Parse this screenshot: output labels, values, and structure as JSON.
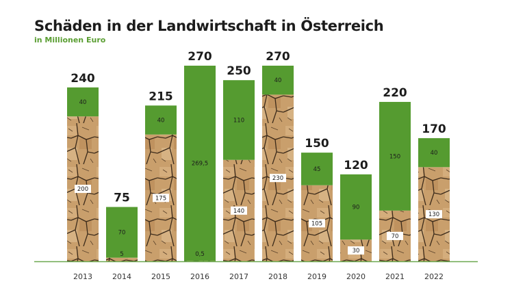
{
  "chart_data": {
    "type": "bar",
    "stacked": true,
    "title": "Schäden in der Landwirtschaft in Österreich",
    "subtitle": "in Millionen Euro",
    "categories": [
      "2013",
      "2014",
      "2015",
      "2016",
      "2017",
      "2018",
      "2019",
      "2020",
      "2021",
      "2022"
    ],
    "series": [
      {
        "values": [
          200,
          5,
          175,
          0.5,
          140,
          230,
          105,
          30,
          70,
          130
        ],
        "labels": [
          "200",
          "5",
          "175",
          "0,5",
          "140",
          "230",
          "105",
          "30",
          "70",
          "130"
        ],
        "color": "#c49a68",
        "fill": "cracked-earth-texture"
      },
      {
        "values": [
          40,
          70,
          40,
          269.5,
          110,
          40,
          45,
          90,
          150,
          40
        ],
        "labels": [
          "40",
          "70",
          "40",
          "269,5",
          "110",
          "40",
          "45",
          "90",
          "150",
          "40"
        ],
        "color": "#559b30"
      }
    ],
    "totals": [
      "240",
      "75",
      "215",
      "270",
      "250",
      "270",
      "150",
      "120",
      "220",
      "170"
    ],
    "ylim": [
      0,
      270
    ],
    "grid": false,
    "baseline_color": "#6aa84f"
  }
}
